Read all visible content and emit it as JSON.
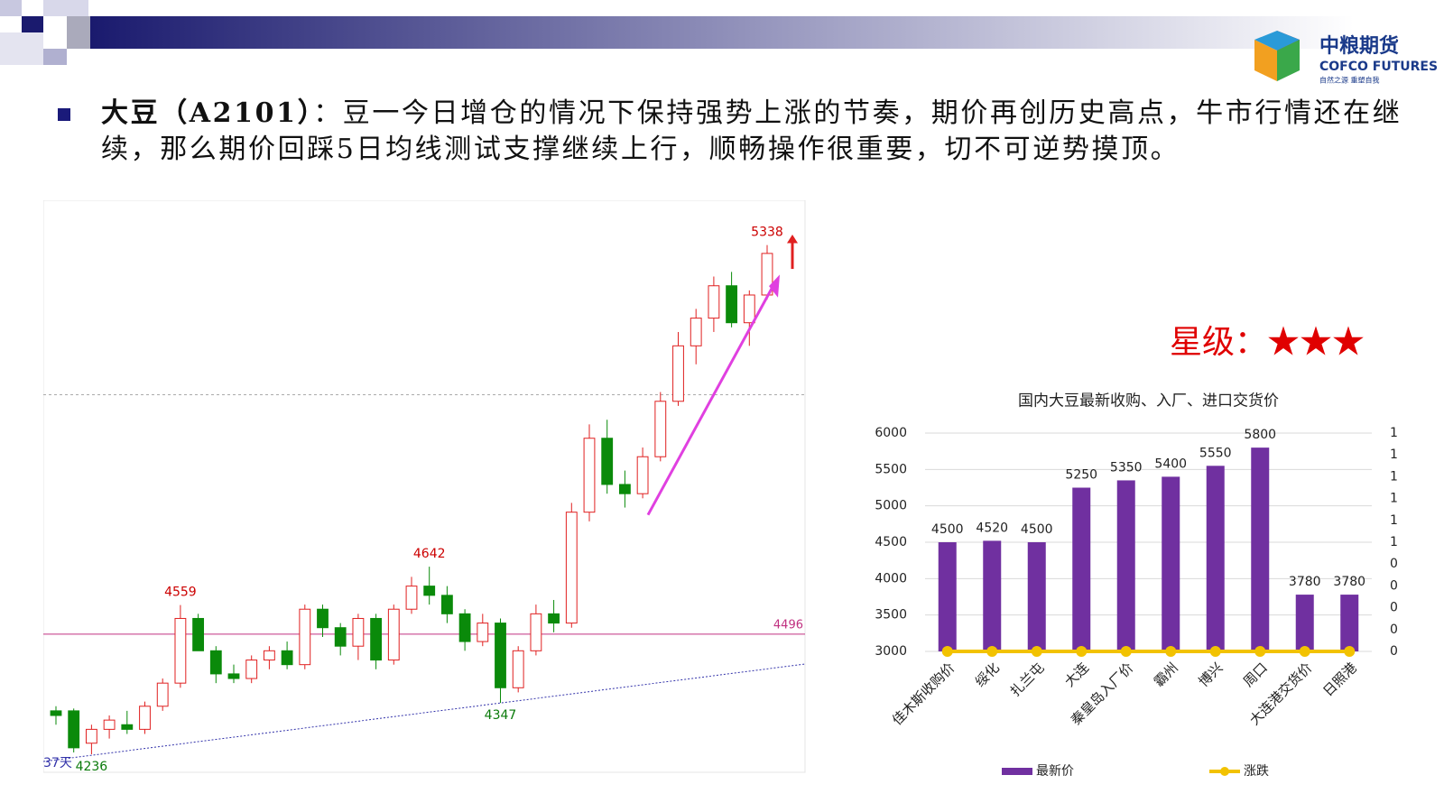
{
  "header": {
    "logo_name": "中粮期货",
    "logo_en": "COFCO FUTURES",
    "logo_slogan": "自然之源 重塑自我"
  },
  "bullet": {
    "label": "大豆（A2101）",
    "text": "：豆一今日增仓的情况下保持强势上涨的节奏，期价再创历史高点，牛市行情还在继续，那么期价回踩5日均线测试支撑继续上行，顺畅操作很重要，切不可逆势摸顶。"
  },
  "rating": "星级：★★★",
  "chart_data": [
    {
      "type": "candlestick",
      "open": [
        4330,
        4330,
        4260,
        4290,
        4300,
        4290,
        4340,
        4390,
        4530,
        4460,
        4410,
        4400,
        4440,
        4460,
        4430,
        4550,
        4510,
        4470,
        4530,
        4440,
        4550,
        4600,
        4580,
        4540,
        4480,
        4520,
        4380,
        4460,
        4540,
        4520,
        4760,
        4920,
        4820,
        4800,
        4880,
        5000,
        5120,
        5180,
        5250,
        5170,
        5230
      ],
      "high": [
        4340,
        4335,
        4300,
        4320,
        4330,
        4350,
        4400,
        4559,
        4540,
        4470,
        4430,
        4450,
        4470,
        4480,
        4560,
        4560,
        4520,
        4540,
        4540,
        4560,
        4620,
        4642,
        4600,
        4550,
        4540,
        4530,
        4470,
        4560,
        4570,
        4780,
        4950,
        4960,
        4850,
        4900,
        5020,
        5150,
        5200,
        5270,
        5280,
        5240,
        5338
      ],
      "low": [
        4300,
        4240,
        4236,
        4270,
        4280,
        4280,
        4330,
        4380,
        4470,
        4390,
        4390,
        4390,
        4420,
        4420,
        4420,
        4490,
        4450,
        4440,
        4420,
        4430,
        4540,
        4560,
        4520,
        4460,
        4470,
        4347,
        4370,
        4450,
        4500,
        4510,
        4740,
        4800,
        4770,
        4790,
        4870,
        4990,
        5080,
        5150,
        5160,
        5120,
        5220
      ],
      "close": [
        4320,
        4250,
        4290,
        4310,
        4290,
        4340,
        4390,
        4530,
        4460,
        4410,
        4400,
        4440,
        4460,
        4430,
        4550,
        4510,
        4470,
        4530,
        4440,
        4550,
        4600,
        4580,
        4540,
        4480,
        4520,
        4380,
        4460,
        4540,
        4520,
        4760,
        4920,
        4820,
        4800,
        4880,
        5000,
        5120,
        5180,
        5250,
        5170,
        5230,
        5320
      ],
      "up_color": "#e02020",
      "down_color": "#0a8a0a",
      "ylim": [
        4197,
        5435
      ],
      "annotations": [
        5338,
        4642,
        4559,
        4347,
        4236
      ],
      "hlines": [
        4496
      ],
      "trend_label": "37天"
    },
    {
      "type": "bar",
      "title": "国内大豆最新收购、入厂、进口交货价",
      "categories": [
        "佳木斯收购价",
        "绥化",
        "扎兰屯",
        "大连",
        "秦皇岛入厂价",
        "霸州",
        "博兴",
        "周口",
        "大连港交货价",
        "日照港"
      ],
      "series": [
        {
          "name": "最新价",
          "color": "#7030a0",
          "values": [
            4500,
            4520,
            4500,
            5250,
            5350,
            5400,
            5550,
            5800,
            3780,
            3780
          ]
        },
        {
          "name": "涨跌",
          "color": "#f2c200",
          "axis": "y2",
          "values": [
            0,
            0,
            0,
            0,
            0,
            0,
            0,
            0,
            0,
            0
          ]
        }
      ],
      "ylim": [
        3000,
        6000
      ],
      "yticks": [
        3000,
        3500,
        4000,
        4500,
        5000,
        5500,
        6000
      ],
      "y2lim": [
        0,
        1
      ],
      "y2ticks": [
        0,
        {
          "value": 0.1,
          "label": "0"
        },
        {
          "value": 0.2,
          "label": "0"
        },
        {
          "value": 0.3,
          "label": "0"
        },
        {
          "value": 0.4,
          "label": "0"
        },
        {
          "value": 0.5,
          "label": "1"
        },
        {
          "value": 0.6,
          "label": "1"
        },
        {
          "value": 0.7,
          "label": "1"
        },
        {
          "value": 0.8,
          "label": "1"
        },
        {
          "value": 0.9,
          "label": "1"
        },
        1
      ],
      "grid": true,
      "data_labels": true
    }
  ]
}
